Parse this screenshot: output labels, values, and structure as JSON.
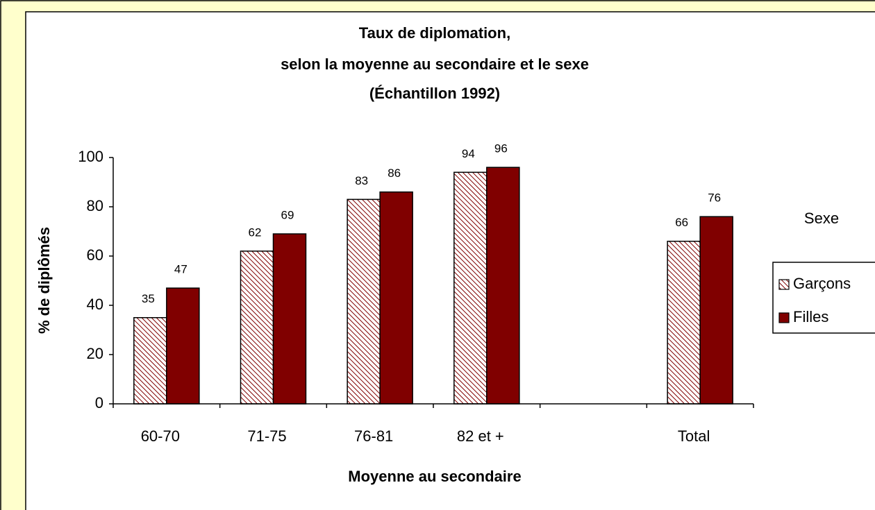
{
  "chart_data": {
    "type": "bar",
    "title": [
      "Taux de diplomation,",
      "selon la moyenne au secondaire et le sexe",
      "(Échantillon 1992)"
    ],
    "x_label": "Moyenne au secondaire",
    "y_label": "% de diplômés",
    "categories": [
      "60-70",
      "71-75",
      "76-81",
      "82 et +",
      null,
      "Total"
    ],
    "series": [
      {
        "name": "Garçons",
        "color": "#800000",
        "hatch": true,
        "values": [
          35,
          62,
          83,
          94,
          null,
          66
        ]
      },
      {
        "name": "Filles",
        "color": "#800000",
        "hatch": false,
        "values": [
          47,
          69,
          86,
          96,
          null,
          76
        ]
      }
    ],
    "ylim": [
      0,
      100
    ],
    "yticks": [
      0,
      20,
      40,
      60,
      80,
      100
    ],
    "grid": false,
    "legend_title": "Sexe",
    "legend": "right"
  }
}
